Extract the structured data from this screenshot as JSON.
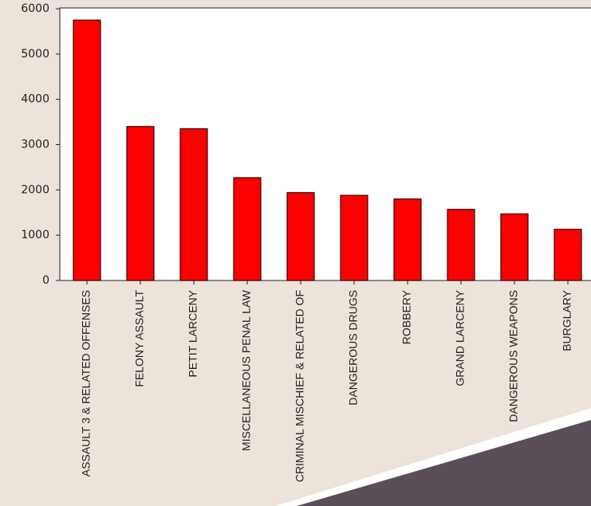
{
  "chart_data": {
    "type": "bar",
    "categories": [
      "ASSAULT 3 & RELATED OFFENSES",
      "FELONY ASSAULT",
      "PETIT LARCENY",
      "MISCELLANEOUS PENAL LAW",
      "CRIMINAL MISCHIEF & RELATED OF",
      "DANGEROUS DRUGS",
      "ROBBERY",
      "GRAND LARCENY",
      "DANGEROUS WEAPONS",
      "BURGLARY"
    ],
    "values": [
      5750,
      3400,
      3350,
      2270,
      1940,
      1880,
      1800,
      1570,
      1470,
      1130
    ],
    "color": "#ff0000",
    "ylim": [
      0,
      6000
    ],
    "yticks": [
      0,
      1000,
      2000,
      3000,
      4000,
      5000,
      6000
    ],
    "grid": false
  }
}
